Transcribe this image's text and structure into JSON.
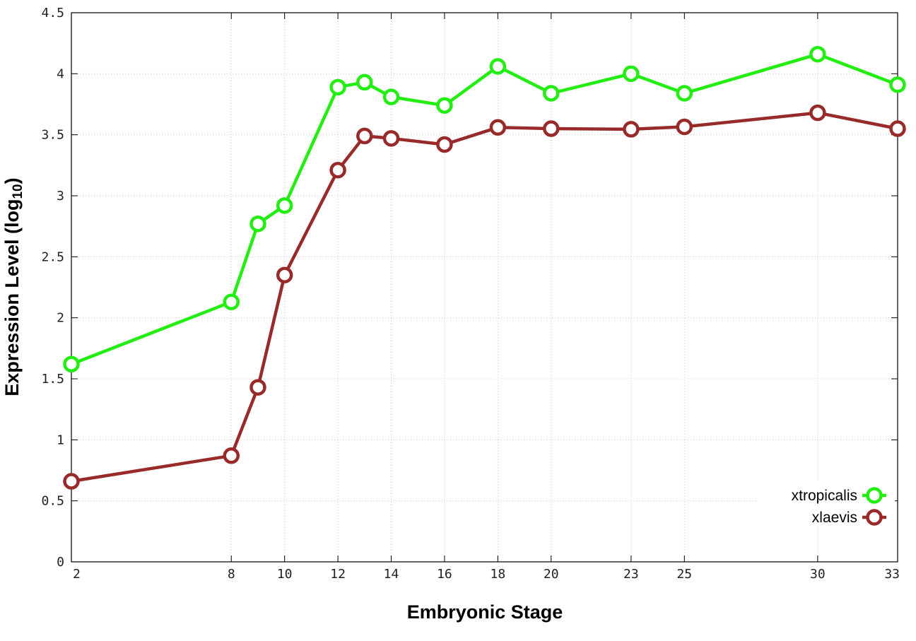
{
  "chart_data": {
    "type": "line",
    "xlabel": "Embryonic Stage",
    "ylabel_main": "Expression Level (log",
    "ylabel_sub": "10",
    "ylabel_close": ")",
    "xlim": [
      2,
      33
    ],
    "ylim": [
      0,
      4.5
    ],
    "x_ticks": [
      2,
      8,
      10,
      12,
      14,
      16,
      18,
      20,
      23,
      25,
      30,
      33
    ],
    "x_tick_labels": [
      "2",
      "8",
      "10",
      "12",
      "14",
      "16",
      "18",
      "20",
      "23",
      "25",
      "30",
      "33"
    ],
    "y_ticks": [
      0,
      0.5,
      1,
      1.5,
      2,
      2.5,
      3,
      3.5,
      4,
      4.5
    ],
    "y_tick_labels": [
      "0",
      "0.5",
      "1",
      "1.5",
      "2",
      "2.5",
      "3",
      "3.5",
      "4",
      "4.5"
    ],
    "grid": true,
    "legend_position": "bottom-right",
    "x": [
      2,
      8,
      9,
      10,
      12,
      13,
      14,
      16,
      18,
      20,
      23,
      25,
      30,
      33
    ],
    "series": [
      {
        "name": "xtropicalis",
        "color": "#22ee11",
        "values": [
          1.62,
          2.13,
          2.77,
          2.92,
          3.89,
          3.93,
          3.81,
          3.74,
          4.06,
          3.84,
          4.0,
          3.84,
          4.16,
          3.91
        ]
      },
      {
        "name": "xlaevis",
        "color": "#992a2a",
        "values": [
          0.66,
          0.87,
          1.43,
          2.35,
          3.21,
          3.49,
          3.47,
          3.42,
          3.56,
          3.55,
          3.545,
          3.565,
          3.68,
          3.55
        ]
      }
    ]
  }
}
